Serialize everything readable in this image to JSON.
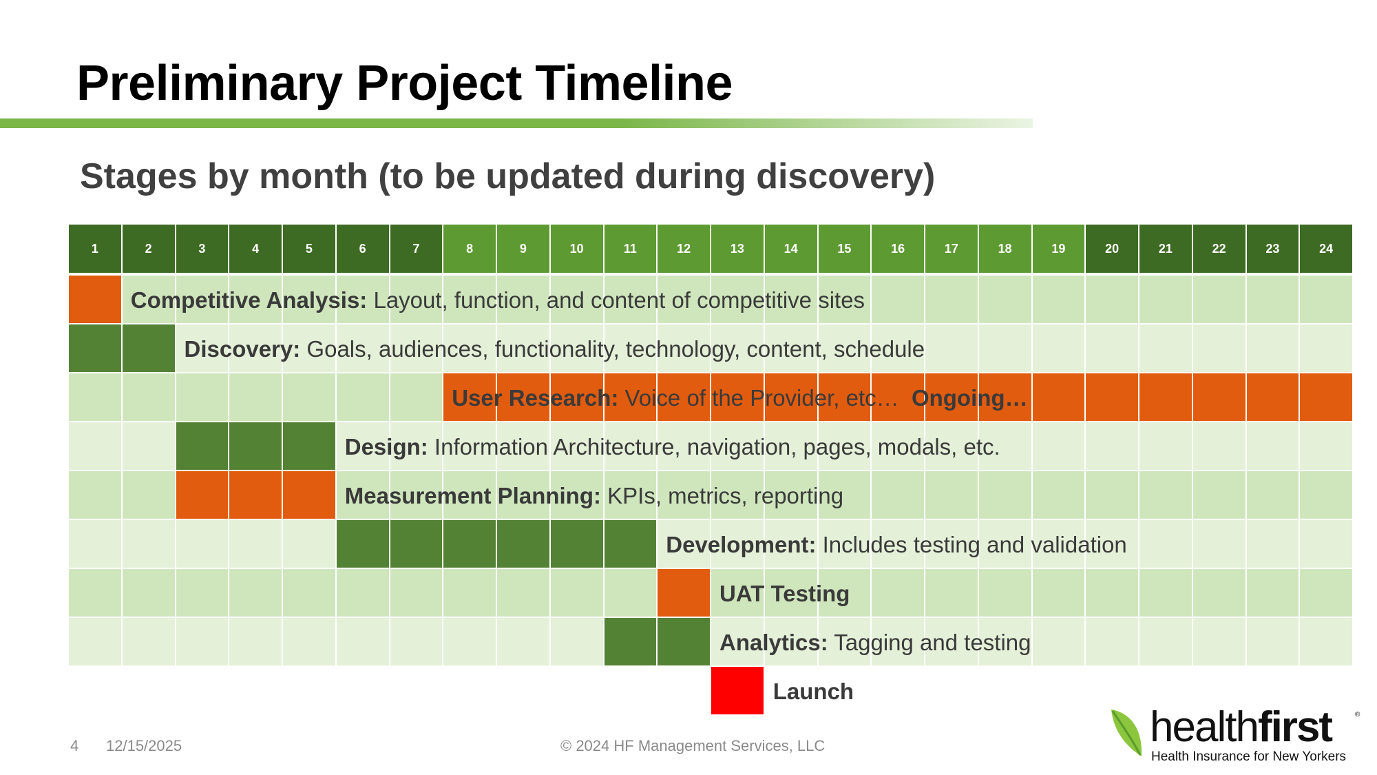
{
  "slide": {
    "title": "Preliminary Project Timeline",
    "subtitle": "Stages by month (to be updated during discovery)",
    "footer_number": "4",
    "footer_date": "12/15/2025",
    "footer_copyright": "© 2024 HF Management Services, LLC"
  },
  "logo": {
    "word_light": "health",
    "word_bold": "first",
    "registered": "®",
    "tagline": "Health Insurance for New Yorkers"
  },
  "colors": {
    "header_dark": "#3e6b23",
    "header_light": "#5e9a32",
    "row_light": "#e4f0d8",
    "row_mid": "#cfe6bd",
    "green_bar": "#548235",
    "orange_bar": "#e15c0f",
    "launch": "#ff0000"
  },
  "months": [
    "1",
    "2",
    "3",
    "4",
    "5",
    "6",
    "7",
    "8",
    "9",
    "10",
    "11",
    "12",
    "13",
    "14",
    "15",
    "16",
    "17",
    "18",
    "19",
    "20",
    "21",
    "22",
    "23",
    "24"
  ],
  "header_shades": [
    "dark",
    "dark",
    "dark",
    "dark",
    "dark",
    "dark",
    "dark",
    "light",
    "light",
    "light",
    "light",
    "light",
    "light",
    "light",
    "light",
    "light",
    "light",
    "light",
    "light",
    "dark",
    "dark",
    "dark",
    "dark",
    "dark"
  ],
  "stages": [
    {
      "name": "Competitive Analysis:",
      "desc": " Layout, function, and content of competitive sites",
      "start": 1,
      "end": 1,
      "color": "orange",
      "bg": "mid",
      "label_start": 2
    },
    {
      "name": "Discovery:",
      "desc": " Goals, audiences, functionality, technology, content, schedule",
      "start": 1,
      "end": 2,
      "color": "green",
      "bg": "light",
      "label_start": 3
    },
    {
      "name": "User Research:",
      "desc": " Voice of the Provider, etc…  ",
      "extra": "Ongoing…",
      "start": 8,
      "end": 24,
      "color": "orange",
      "bg": "mid",
      "label_start": 8
    },
    {
      "name": "Design:",
      "desc": " Information Architecture, navigation, pages, modals, etc.",
      "start": 3,
      "end": 5,
      "color": "green",
      "bg": "light",
      "label_start": 6
    },
    {
      "name": "Measurement Planning:",
      "desc": " KPIs, metrics, reporting",
      "start": 3,
      "end": 5,
      "color": "orange",
      "bg": "mid",
      "label_start": 6
    },
    {
      "name": "Development:",
      "desc": " Includes testing and validation",
      "start": 6,
      "end": 11,
      "color": "green",
      "bg": "light",
      "label_start": 12
    },
    {
      "name": "UAT Testing",
      "desc": "",
      "start": 12,
      "end": 12,
      "color": "orange",
      "bg": "mid",
      "label_start": 13
    },
    {
      "name": "Analytics:",
      "desc": " Tagging and testing",
      "start": 11,
      "end": 12,
      "color": "green",
      "bg": "light",
      "label_start": 13
    }
  ],
  "launch": {
    "label": "Launch",
    "month": 13
  }
}
